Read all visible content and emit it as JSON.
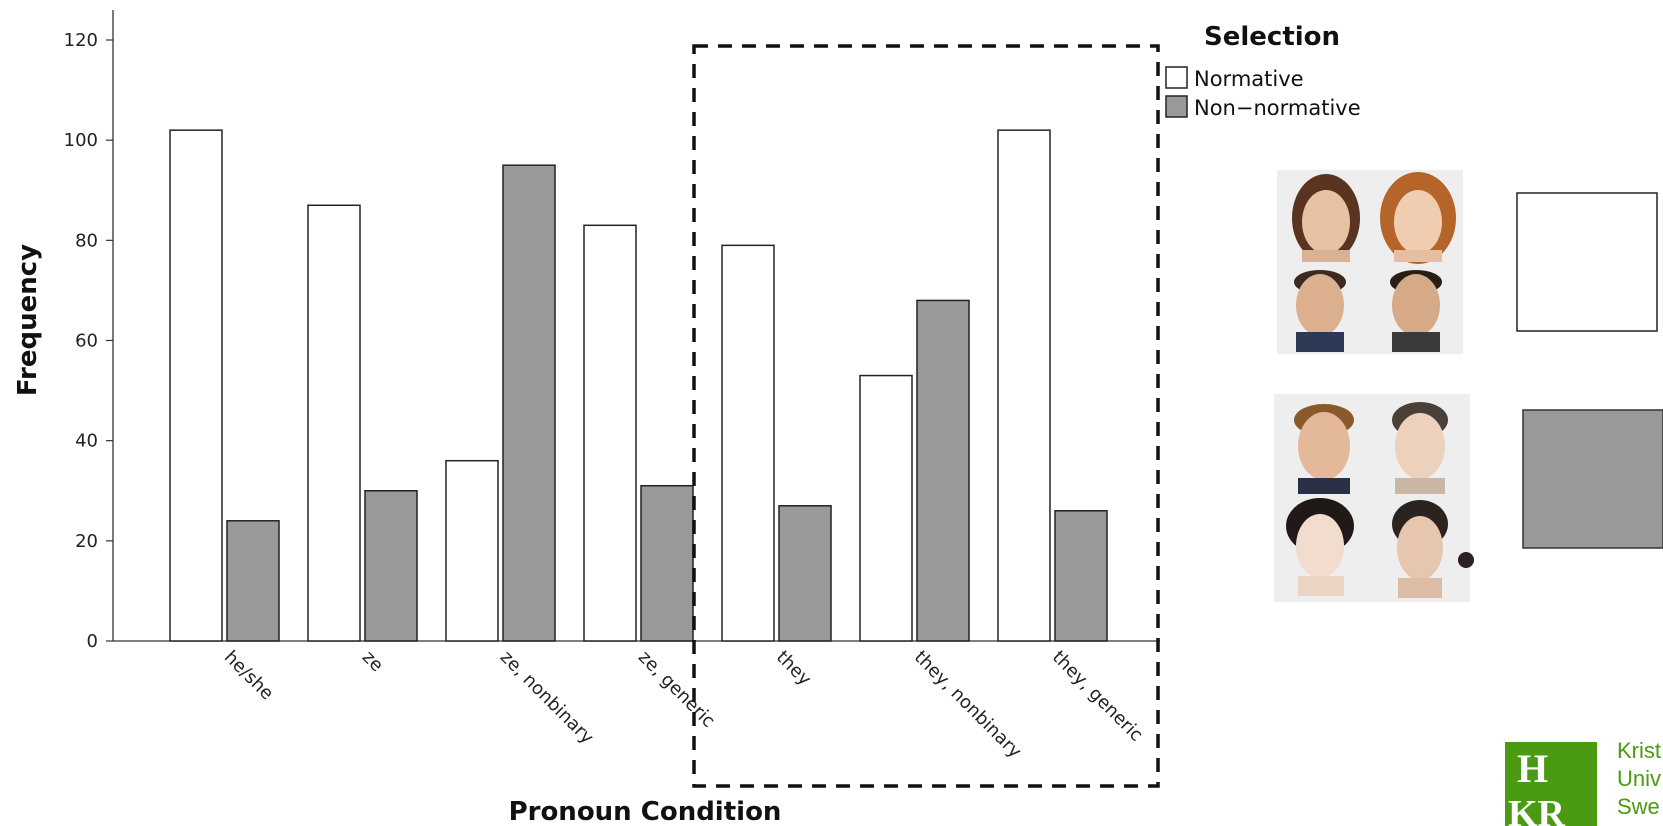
{
  "chart_data": {
    "type": "bar",
    "ylabel": "Frequency",
    "xlabel": "Pronoun Condition",
    "ylim": [
      0,
      120
    ],
    "yticks": [
      0,
      20,
      40,
      60,
      80,
      100,
      120
    ],
    "categories": [
      "he/she",
      "ze",
      "ze, nonbinary",
      "ze, generic",
      "they",
      "they, nonbinary",
      "they, generic"
    ],
    "series": [
      {
        "name": "Normative",
        "color": "#ffffff",
        "values": [
          102,
          87,
          36,
          83,
          79,
          53,
          102
        ]
      },
      {
        "name": "Non−normative",
        "color": "#999999",
        "values": [
          24,
          30,
          95,
          31,
          27,
          68,
          26
        ]
      }
    ],
    "legend": {
      "title": "Selection",
      "placement": "top-right"
    },
    "highlight": "dashed box around they, they nonbinary, they generic"
  },
  "side_panel": {
    "normative_faces": "face-photos-normative",
    "nonnormative_faces": "face-photos-nonnormative"
  },
  "logo": {
    "letters": "HKR",
    "lines": [
      "Krist",
      "Univ",
      "Swe"
    ],
    "color": "#4a9a12"
  }
}
